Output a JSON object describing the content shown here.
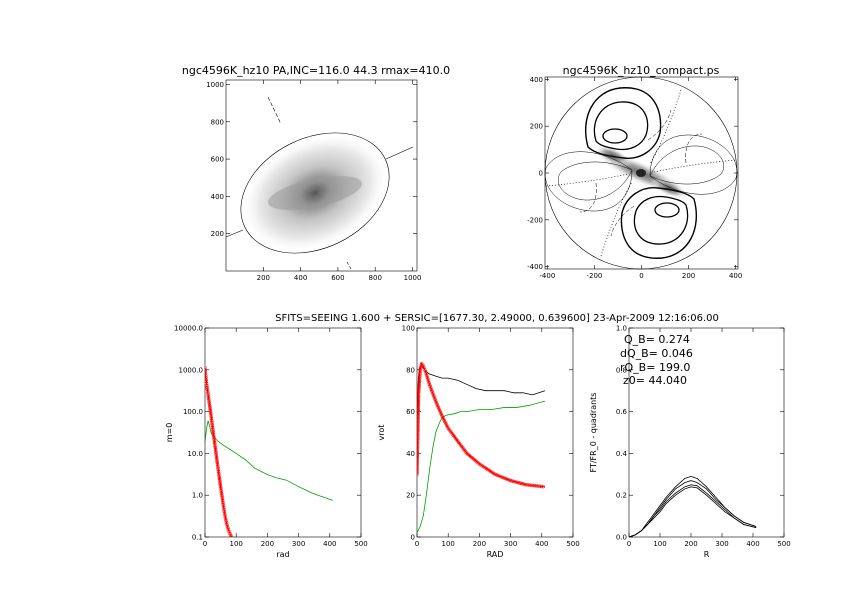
{
  "header": {
    "title_left": "ngc4596K_hz10 PA,INC=116.0 44.3 rmax=410.0",
    "title_right": "ngc4596K_hz10_compact.ps",
    "banner": "SFITS=SEEING 1.600 + SERSIC=[1677.30, 2.49000, 0.639600]  23-Apr-2009 12:16:06.00"
  },
  "chart_data": [
    {
      "type": "heatmap",
      "title": "ngc4596K_hz10 PA,INC=116.0 44.3 rmax=410.0",
      "xlim": [
        0,
        1024
      ],
      "ylim": [
        0,
        1024
      ],
      "xticks": [
        "200",
        "400",
        "600",
        "800",
        "1000"
      ],
      "yticks": [
        "200",
        "400",
        "600",
        "800",
        "1000"
      ],
      "center": [
        475,
        410
      ],
      "ellipse": {
        "semi_major": 410.0,
        "semi_minor": 293.5,
        "pa_deg": 116.0
      }
    },
    {
      "type": "heatmap",
      "title": "ngc4596K_hz10_compact.ps",
      "xlim": [
        -410,
        410
      ],
      "ylim": [
        -410,
        410
      ],
      "xticks": [
        "-400",
        "-200",
        "0",
        "200",
        "400"
      ],
      "yticks": [
        "-400",
        "-200",
        "0",
        "200",
        "400"
      ],
      "outer_radius": 410
    },
    {
      "type": "line",
      "xlabel": "rad",
      "ylabel": "m=0",
      "xlim": [
        0,
        500
      ],
      "ylim": [
        0.1,
        10000
      ],
      "yscale": "log",
      "xticks": [
        "0",
        "100",
        "200",
        "300",
        "400",
        "500"
      ],
      "yticks": [
        "0.1",
        "1.0",
        "10.0",
        "100.0",
        "1000.0",
        "10000.0"
      ],
      "series": [
        {
          "color": "#00a000",
          "x": [
            0,
            5,
            10,
            15,
            20,
            30,
            40,
            60,
            80,
            100,
            130,
            160,
            200,
            230,
            260,
            300,
            340,
            370,
            410
          ],
          "y": [
            18,
            40,
            60,
            45,
            30,
            24,
            20,
            15.5,
            12.5,
            10,
            7,
            4.4,
            3.1,
            2.6,
            2.3,
            1.6,
            1.15,
            0.95,
            0.75
          ]
        },
        {
          "color": "#ff0000",
          "x": [
            0,
            3,
            6,
            10,
            15,
            20,
            25,
            30,
            35,
            40,
            45,
            50,
            55,
            60,
            65,
            70,
            75,
            80,
            85,
            90
          ],
          "y": [
            1100,
            650,
            420,
            250,
            140,
            75,
            38,
            20,
            10.5,
            5.5,
            3,
            1.6,
            0.9,
            0.5,
            0.3,
            0.2,
            0.15,
            0.12,
            0.1,
            0.09
          ]
        }
      ]
    },
    {
      "type": "line",
      "xlabel": "RAD",
      "ylabel": "vrot",
      "xlim": [
        0,
        500
      ],
      "ylim": [
        0,
        100
      ],
      "xticks": [
        "0",
        "100",
        "200",
        "300",
        "400",
        "500"
      ],
      "yticks": [
        "0",
        "20",
        "40",
        "60",
        "80",
        "100"
      ],
      "series": [
        {
          "color": "#000000",
          "x": [
            0,
            5,
            10,
            15,
            20,
            30,
            40,
            60,
            80,
            100,
            130,
            160,
            190,
            220,
            250,
            280,
            310,
            340,
            370,
            410
          ],
          "y": [
            58,
            76,
            81,
            82,
            81,
            79,
            78,
            77,
            76,
            76,
            75,
            73,
            71,
            70,
            70,
            70,
            69,
            69,
            68,
            70
          ]
        },
        {
          "color": "#00a000",
          "x": [
            0,
            10,
            20,
            30,
            40,
            50,
            60,
            70,
            80,
            90,
            100,
            120,
            140,
            160,
            200,
            240,
            280,
            320,
            360,
            410
          ],
          "y": [
            2,
            5,
            10,
            20,
            32,
            42,
            50,
            54,
            57,
            58,
            58.5,
            59,
            60,
            60,
            61,
            61,
            62,
            62,
            63,
            65
          ]
        },
        {
          "color": "#ff0000",
          "x": [
            0,
            5,
            10,
            15,
            20,
            25,
            30,
            40,
            50,
            60,
            80,
            100,
            130,
            160,
            200,
            250,
            300,
            350,
            410
          ],
          "y": [
            30,
            68,
            80,
            83,
            82,
            80,
            78,
            73,
            69,
            65,
            58,
            52,
            46,
            40,
            35,
            30,
            27,
            25,
            24
          ]
        }
      ]
    },
    {
      "type": "line",
      "xlabel": "R",
      "ylabel": "FT/FR_0 - quadrants",
      "xlim": [
        0,
        500
      ],
      "ylim": [
        0,
        1
      ],
      "xticks": [
        "0",
        "100",
        "200",
        "300",
        "400",
        "500"
      ],
      "yticks": [
        "0.0",
        "0.2",
        "0.4",
        "0.6",
        "0.8",
        "1.0"
      ],
      "annotations": [
        "Q_B=  0.274",
        "dQ_B=  0.046",
        "rQ_B=  199.0",
        "z0= 44.040"
      ],
      "series": [
        {
          "color": "#000000",
          "x": [
            0,
            20,
            40,
            60,
            80,
            100,
            120,
            150,
            180,
            200,
            220,
            250,
            280,
            310,
            340,
            370,
            410
          ],
          "y": [
            0,
            0.01,
            0.03,
            0.07,
            0.11,
            0.15,
            0.19,
            0.24,
            0.28,
            0.29,
            0.28,
            0.24,
            0.19,
            0.14,
            0.1,
            0.07,
            0.05
          ]
        },
        {
          "color": "#000000",
          "x": [
            0,
            20,
            40,
            60,
            80,
            100,
            120,
            150,
            180,
            200,
            220,
            250,
            280,
            310,
            340,
            370,
            410
          ],
          "y": [
            0,
            0.01,
            0.03,
            0.06,
            0.1,
            0.14,
            0.18,
            0.23,
            0.26,
            0.27,
            0.26,
            0.23,
            0.18,
            0.14,
            0.1,
            0.07,
            0.05
          ]
        },
        {
          "color": "#000000",
          "x": [
            0,
            20,
            40,
            60,
            80,
            100,
            120,
            150,
            180,
            200,
            220,
            250,
            280,
            310,
            340,
            370,
            410
          ],
          "y": [
            0,
            0.01,
            0.03,
            0.06,
            0.1,
            0.13,
            0.17,
            0.21,
            0.24,
            0.25,
            0.245,
            0.21,
            0.17,
            0.13,
            0.09,
            0.06,
            0.045
          ]
        },
        {
          "color": "#000000",
          "x": [
            0,
            20,
            40,
            60,
            80,
            100,
            120,
            150,
            180,
            200,
            220,
            250,
            280,
            310,
            340,
            370,
            410
          ],
          "y": [
            0,
            0.01,
            0.03,
            0.06,
            0.09,
            0.12,
            0.16,
            0.2,
            0.23,
            0.24,
            0.235,
            0.2,
            0.16,
            0.12,
            0.09,
            0.06,
            0.045
          ]
        }
      ]
    }
  ]
}
